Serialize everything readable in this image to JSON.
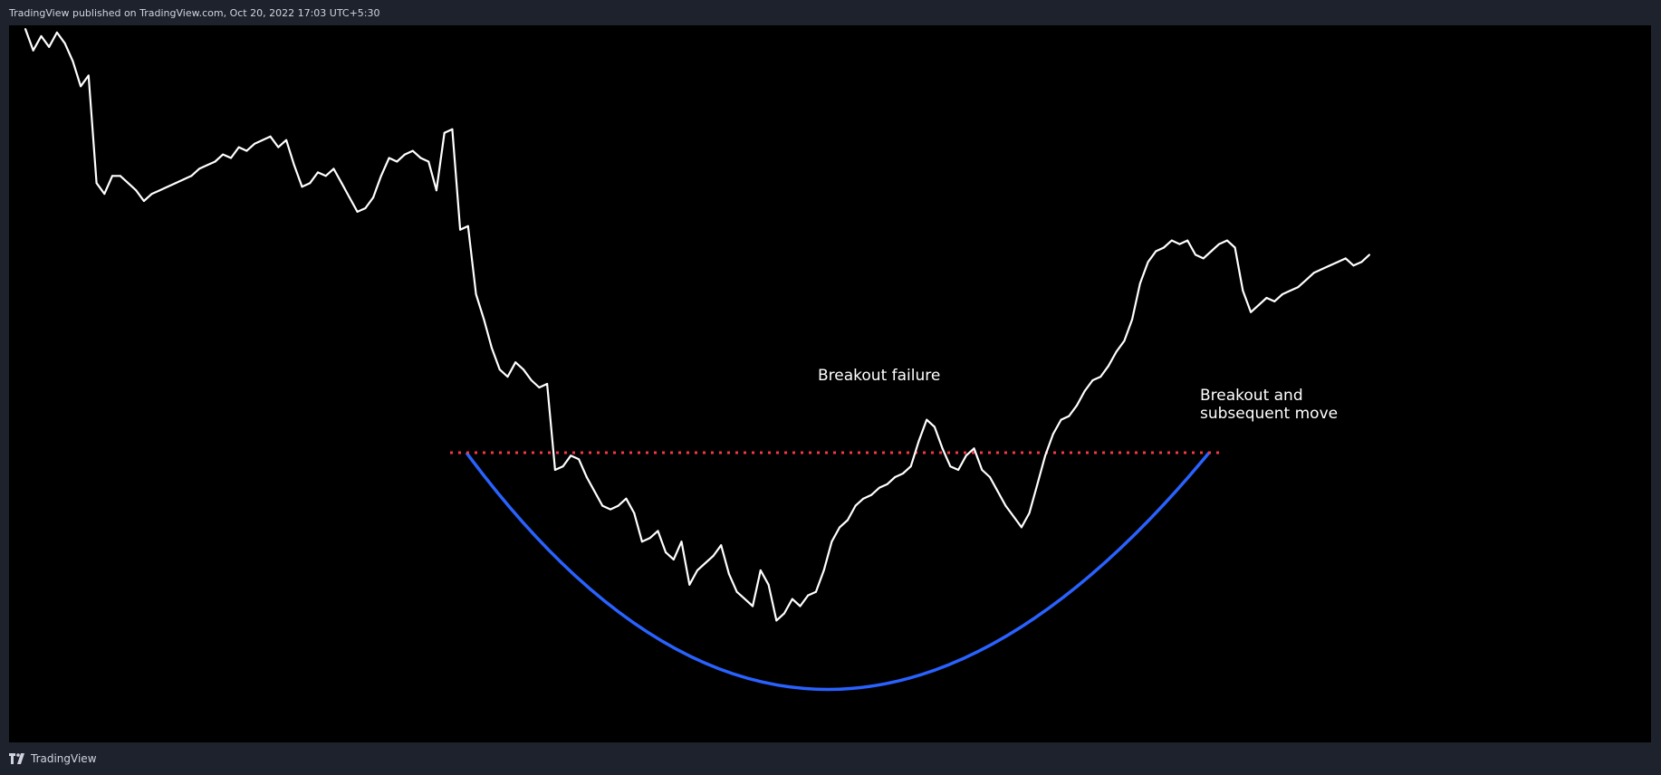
{
  "header": {
    "text": "TradingView published on TradingView.com, Oct 20, 2022 17:03 UTC+5:30"
  },
  "footer": {
    "brand": "TradingView",
    "logo_icon": "tradingview-logo-icon"
  },
  "colors": {
    "price_line": "#ffffff",
    "cup_curve": "#2962ff",
    "resistance_line": "#f23645",
    "chart_background": "#000000",
    "panel_background": "#1e222d"
  },
  "chart_data": {
    "type": "line",
    "title": "",
    "xlabel": "",
    "ylabel": "",
    "axes_visible": false,
    "grid": false,
    "series": [
      {
        "values": [
          0.995,
          0.965,
          0.985,
          0.97,
          0.99,
          0.975,
          0.95,
          0.915,
          0.93,
          0.78,
          0.765,
          0.79,
          0.79,
          0.78,
          0.77,
          0.755,
          0.765,
          0.77,
          0.775,
          0.78,
          0.785,
          0.79,
          0.8,
          0.805,
          0.81,
          0.82,
          0.815,
          0.83,
          0.825,
          0.835,
          0.84,
          0.845,
          0.83,
          0.84,
          0.805,
          0.775,
          0.78,
          0.795,
          0.79,
          0.8,
          0.78,
          0.76,
          0.74,
          0.745,
          0.76,
          0.79,
          0.815,
          0.81,
          0.82,
          0.825,
          0.815,
          0.81,
          0.77,
          0.85,
          0.855,
          0.715,
          0.72,
          0.625,
          0.59,
          0.55,
          0.52,
          0.51,
          0.53,
          0.52,
          0.505,
          0.495,
          0.5,
          0.38,
          0.385,
          0.4,
          0.395,
          0.37,
          0.35,
          0.33,
          0.325,
          0.33,
          0.34,
          0.32,
          0.28,
          0.285,
          0.295,
          0.265,
          0.255,
          0.28,
          0.22,
          0.24,
          0.25,
          0.26,
          0.275,
          0.235,
          0.21,
          0.2,
          0.19,
          0.24,
          0.22,
          0.17,
          0.18,
          0.2,
          0.19,
          0.205,
          0.21,
          0.24,
          0.28,
          0.3,
          0.31,
          0.33,
          0.34,
          0.345,
          0.355,
          0.36,
          0.37,
          0.375,
          0.385,
          0.42,
          0.45,
          0.44,
          0.41,
          0.385,
          0.38,
          0.4,
          0.41,
          0.38,
          0.37,
          0.35,
          0.33,
          0.315,
          0.3,
          0.32,
          0.36,
          0.4,
          0.43,
          0.45,
          0.455,
          0.47,
          0.49,
          0.505,
          0.51,
          0.525,
          0.545,
          0.56,
          0.59,
          0.64,
          0.67,
          0.685,
          0.69,
          0.7,
          0.695,
          0.7,
          0.68,
          0.675,
          0.685,
          0.695,
          0.7,
          0.69,
          0.63,
          0.6,
          0.61,
          0.62,
          0.615,
          0.625,
          0.63,
          0.635,
          0.645,
          0.655,
          0.66,
          0.665,
          0.67,
          0.675,
          0.665,
          0.67,
          0.68
        ]
      }
    ],
    "annotations": [
      {
        "text": "Breakout failure"
      },
      {
        "text": "Breakout and"
      },
      {
        "text": "subsequent move"
      }
    ],
    "overlays": [
      {
        "type": "cup-curve",
        "color": "#2962ff",
        "style": "solid"
      },
      {
        "type": "resistance-line",
        "color": "#f23645",
        "style": "dotted"
      }
    ]
  }
}
